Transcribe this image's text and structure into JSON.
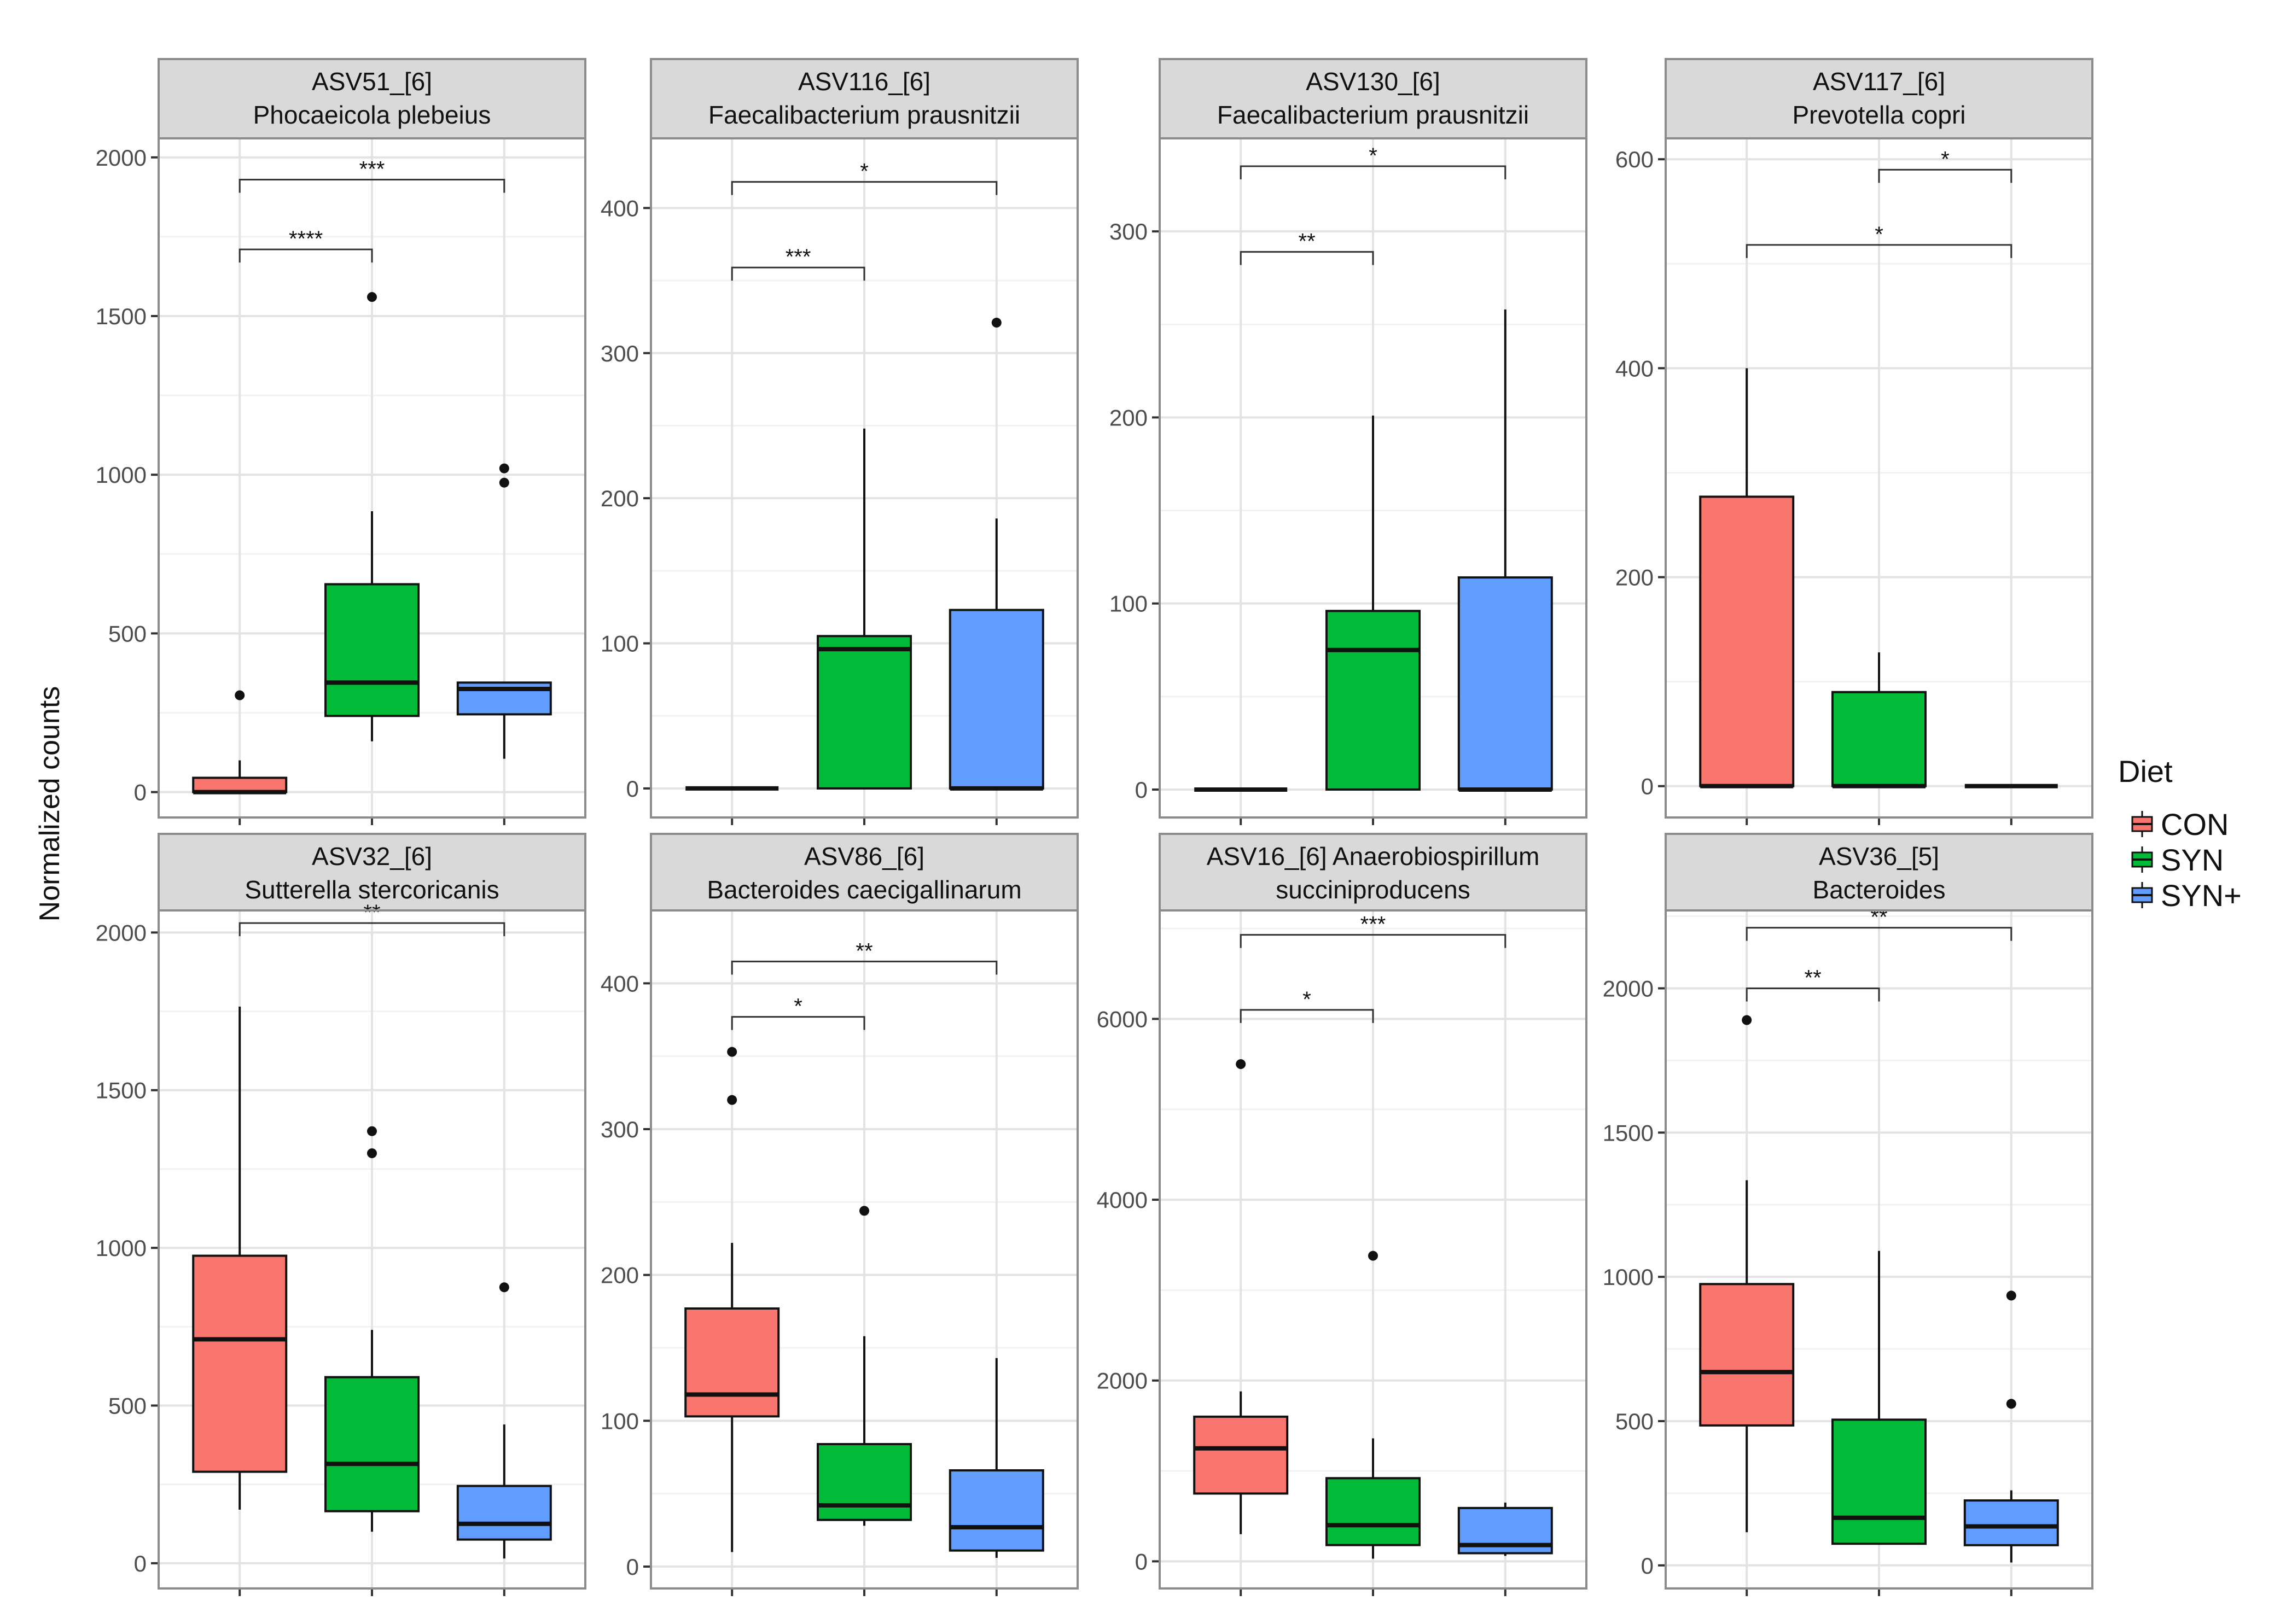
{
  "figure": {
    "ylabel": "Normalized counts",
    "legend_title": "Diet",
    "groups": [
      "CON",
      "SYN",
      "SYN+"
    ],
    "colors": {
      "CON": "#F8766D",
      "SYN": "#00BA38",
      "SYN+": "#619CFF"
    }
  },
  "chart_data": [
    {
      "type": "box",
      "title_line1": "ASV51_[6]",
      "title_line2": "Phocaeicola plebeius",
      "xlabel": "",
      "ylabel": "Normalized counts",
      "ylim": [
        -80,
        2060
      ],
      "yticks": [
        0,
        500,
        1000,
        1500,
        2000
      ],
      "ytick_labels": [
        "0",
        "500",
        "1000",
        "1500",
        "2000"
      ],
      "boxes": [
        {
          "group": "CON",
          "q1": 0,
          "median": 0,
          "q3": 45,
          "wmin": 0,
          "wmax": 100,
          "outliers": [
            305
          ]
        },
        {
          "group": "SYN",
          "q1": 240,
          "median": 345,
          "q3": 655,
          "wmin": 160,
          "wmax": 885,
          "outliers": [
            1560
          ]
        },
        {
          "group": "SYN+",
          "q1": 245,
          "median": 325,
          "q3": 345,
          "wmin": 105,
          "wmax": 345,
          "outliers": [
            975,
            1020
          ]
        }
      ],
      "brackets": [
        {
          "from": 0,
          "to": 1,
          "y": 1710,
          "label": "****"
        },
        {
          "from": 0,
          "to": 2,
          "y": 1930,
          "label": "***"
        }
      ]
    },
    {
      "type": "box",
      "title_line1": "ASV116_[6]",
      "title_line2": "Faecalibacterium prausnitzii",
      "xlabel": "",
      "ylabel": "Normalized counts",
      "ylim": [
        -20,
        448
      ],
      "yticks": [
        0,
        100,
        200,
        300,
        400
      ],
      "ytick_labels": [
        "0",
        "100",
        "200",
        "300",
        "400"
      ],
      "boxes": [
        {
          "group": "CON",
          "q1": 0,
          "median": 0,
          "q3": 0,
          "wmin": 0,
          "wmax": 0,
          "outliers": []
        },
        {
          "group": "SYN",
          "q1": 0,
          "median": 96,
          "q3": 105,
          "wmin": 0,
          "wmax": 248,
          "outliers": []
        },
        {
          "group": "SYN+",
          "q1": 0,
          "median": 0,
          "q3": 123,
          "wmin": 0,
          "wmax": 186,
          "outliers": [
            321
          ]
        }
      ],
      "brackets": [
        {
          "from": 0,
          "to": 1,
          "y": 359,
          "label": "***"
        },
        {
          "from": 0,
          "to": 2,
          "y": 418,
          "label": "*"
        }
      ]
    },
    {
      "type": "box",
      "title_line1": "ASV130_[6]",
      "title_line2": "Faecalibacterium prausnitzii",
      "xlabel": "",
      "ylabel": "Normalized counts",
      "ylim": [
        -15,
        350
      ],
      "yticks": [
        0,
        100,
        200,
        300
      ],
      "ytick_labels": [
        "0",
        "100",
        "200",
        "300"
      ],
      "boxes": [
        {
          "group": "CON",
          "q1": 0,
          "median": 0,
          "q3": 0,
          "wmin": 0,
          "wmax": 0,
          "outliers": []
        },
        {
          "group": "SYN",
          "q1": 0,
          "median": 75,
          "q3": 96,
          "wmin": 0,
          "wmax": 201,
          "outliers": []
        },
        {
          "group": "SYN+",
          "q1": 0,
          "median": 0,
          "q3": 114,
          "wmin": 0,
          "wmax": 258,
          "outliers": []
        }
      ],
      "brackets": [
        {
          "from": 0,
          "to": 1,
          "y": 289,
          "label": "**"
        },
        {
          "from": 0,
          "to": 2,
          "y": 335,
          "label": "*"
        }
      ]
    },
    {
      "type": "box",
      "title_line1": "ASV117_[6]",
      "title_line2": "Prevotella copri",
      "xlabel": "",
      "ylabel": "Normalized counts",
      "ylim": [
        -30,
        620
      ],
      "yticks": [
        0,
        200,
        400,
        600
      ],
      "ytick_labels": [
        "0",
        "200",
        "400",
        "600"
      ],
      "boxes": [
        {
          "group": "CON",
          "q1": 0,
          "median": 0,
          "q3": 277,
          "wmin": 0,
          "wmax": 400,
          "outliers": []
        },
        {
          "group": "SYN",
          "q1": 0,
          "median": 0,
          "q3": 90,
          "wmin": 0,
          "wmax": 128,
          "outliers": []
        },
        {
          "group": "SYN+",
          "q1": 0,
          "median": 0,
          "q3": 0,
          "wmin": 0,
          "wmax": 0,
          "outliers": []
        }
      ],
      "brackets": [
        {
          "from": 0,
          "to": 2,
          "y": 518,
          "label": "*"
        },
        {
          "from": 1,
          "to": 2,
          "y": 590,
          "label": "*"
        }
      ]
    },
    {
      "type": "box",
      "title_line1": "ASV32_[6]",
      "title_line2": "Sutterella stercoricanis",
      "xlabel": "",
      "ylabel": "Normalized counts",
      "ylim": [
        -80,
        2070
      ],
      "yticks": [
        0,
        500,
        1000,
        1500,
        2000
      ],
      "ytick_labels": [
        "0",
        "500",
        "1000",
        "1500",
        "2000"
      ],
      "boxes": [
        {
          "group": "CON",
          "q1": 290,
          "median": 710,
          "q3": 975,
          "wmin": 170,
          "wmax": 1765,
          "outliers": []
        },
        {
          "group": "SYN",
          "q1": 165,
          "median": 315,
          "q3": 590,
          "wmin": 100,
          "wmax": 740,
          "outliers": [
            1300,
            1370
          ]
        },
        {
          "group": "SYN+",
          "q1": 75,
          "median": 125,
          "q3": 245,
          "wmin": 15,
          "wmax": 440,
          "outliers": [
            875
          ]
        }
      ],
      "brackets": [
        {
          "from": 0,
          "to": 2,
          "y": 2030,
          "label": "**"
        }
      ]
    },
    {
      "type": "box",
      "title_line1": "ASV86_[6]",
      "title_line2": "Bacteroides caecigallinarum",
      "xlabel": "",
      "ylabel": "Normalized counts",
      "ylim": [
        -15,
        450
      ],
      "yticks": [
        0,
        100,
        200,
        300,
        400
      ],
      "ytick_labels": [
        "0",
        "100",
        "200",
        "300",
        "400"
      ],
      "boxes": [
        {
          "group": "CON",
          "q1": 103,
          "median": 118,
          "q3": 177,
          "wmin": 10,
          "wmax": 222,
          "outliers": [
            320,
            353
          ]
        },
        {
          "group": "SYN",
          "q1": 32,
          "median": 42,
          "q3": 84,
          "wmin": 28,
          "wmax": 158,
          "outliers": [
            244
          ]
        },
        {
          "group": "SYN+",
          "q1": 11,
          "median": 27,
          "q3": 66,
          "wmin": 6,
          "wmax": 143,
          "outliers": []
        }
      ],
      "brackets": [
        {
          "from": 0,
          "to": 1,
          "y": 377,
          "label": "*"
        },
        {
          "from": 0,
          "to": 2,
          "y": 415,
          "label": "**"
        }
      ]
    },
    {
      "type": "box",
      "title_line1": "ASV16_[6] Anaerobiospirillum",
      "title_line2": "succiniproducens",
      "xlabel": "",
      "ylabel": "Normalized counts",
      "ylim": [
        -300,
        7200
      ],
      "yticks": [
        0,
        2000,
        4000,
        6000
      ],
      "ytick_labels": [
        "0",
        "2000",
        "4000",
        "6000"
      ],
      "boxes": [
        {
          "group": "CON",
          "q1": 750,
          "median": 1250,
          "q3": 1600,
          "wmin": 300,
          "wmax": 1880,
          "outliers": [
            5500
          ]
        },
        {
          "group": "SYN",
          "q1": 180,
          "median": 400,
          "q3": 920,
          "wmin": 30,
          "wmax": 1360,
          "outliers": [
            3380
          ]
        },
        {
          "group": "SYN+",
          "q1": 90,
          "median": 180,
          "q3": 590,
          "wmin": 60,
          "wmax": 650,
          "outliers": []
        }
      ],
      "brackets": [
        {
          "from": 0,
          "to": 1,
          "y": 6100,
          "label": "*"
        },
        {
          "from": 0,
          "to": 2,
          "y": 6930,
          "label": "***"
        }
      ]
    },
    {
      "type": "box",
      "title_line1": "ASV36_[5]",
      "title_line2": "Bacteroides",
      "xlabel": "",
      "ylabel": "Normalized counts",
      "ylim": [
        -80,
        2270
      ],
      "yticks": [
        0,
        500,
        1000,
        1500,
        2000
      ],
      "ytick_labels": [
        "0",
        "500",
        "1000",
        "1500",
        "2000"
      ],
      "boxes": [
        {
          "group": "CON",
          "q1": 485,
          "median": 670,
          "q3": 975,
          "wmin": 115,
          "wmax": 1335,
          "outliers": [
            1890
          ]
        },
        {
          "group": "SYN",
          "q1": 75,
          "median": 165,
          "q3": 505,
          "wmin": 75,
          "wmax": 1090,
          "outliers": []
        },
        {
          "group": "SYN+",
          "q1": 70,
          "median": 135,
          "q3": 225,
          "wmin": 10,
          "wmax": 260,
          "outliers": [
            560,
            935
          ]
        }
      ],
      "brackets": [
        {
          "from": 0,
          "to": 1,
          "y": 2000,
          "label": "**"
        },
        {
          "from": 0,
          "to": 2,
          "y": 2210,
          "label": "**"
        }
      ]
    }
  ]
}
